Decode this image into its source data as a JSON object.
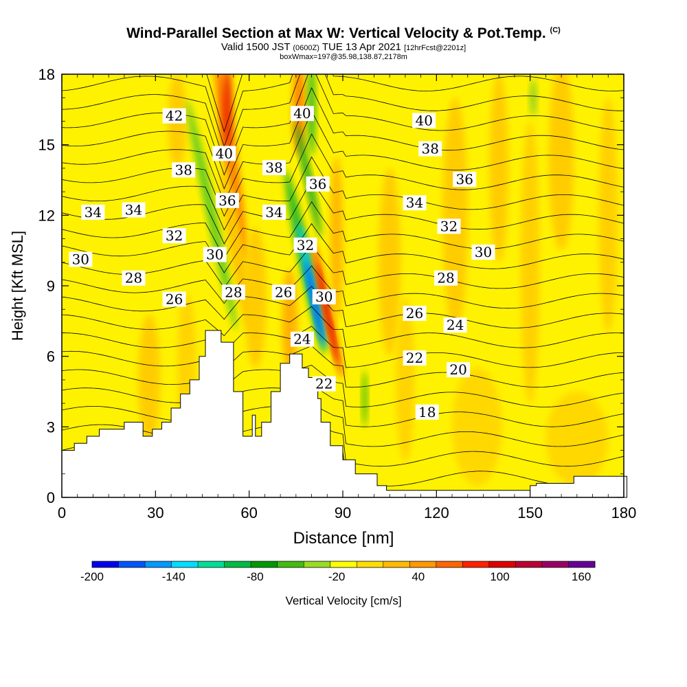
{
  "title": {
    "main": "Wind-Parallel Section at Max W: Vertical Velocity & Pot.Temp.",
    "copyright": "(C)",
    "valid_prefix": "Valid 1500 JST",
    "valid_utc": "(0600Z)",
    "valid_date": "TUE 13 Apr 2021",
    "forecast": "[12hrFcst@2201z]",
    "subtitle": "boxWmax=197@35.98,138.87,2178m"
  },
  "chart_data": {
    "type": "heatmap",
    "xlabel": "Distance [nm]",
    "ylabel": "Height [Kft MSL]",
    "xlim": [
      0,
      180
    ],
    "ylim": [
      0,
      18
    ],
    "x_ticks": [
      "0",
      "30",
      "60",
      "90",
      "120",
      "150",
      "180"
    ],
    "y_ticks": [
      "0",
      "3",
      "6",
      "9",
      "12",
      "15",
      "18"
    ],
    "colorbar": {
      "label": "Vertical Velocity [cm/s]",
      "min": -200,
      "max": 170,
      "step": 20,
      "tick_labels": [
        "-200",
        "-140",
        "-80",
        "-20",
        "40",
        "100",
        "160"
      ],
      "colors": [
        "#0000ee",
        "#0055ff",
        "#0099ff",
        "#00ddff",
        "#00dd99",
        "#00bb44",
        "#009900",
        "#44bb11",
        "#99dd22",
        "#ffff00",
        "#ffdd00",
        "#ffbb00",
        "#ff9900",
        "#ff6600",
        "#ff2200",
        "#dd0000",
        "#bb0033",
        "#990066",
        "#660099"
      ]
    },
    "terrain_kft": [
      [
        0,
        2.0
      ],
      [
        4,
        2.0
      ],
      [
        4,
        2.3
      ],
      [
        8,
        2.3
      ],
      [
        8,
        2.6
      ],
      [
        12,
        2.6
      ],
      [
        12,
        2.9
      ],
      [
        20,
        2.9
      ],
      [
        20,
        3.2
      ],
      [
        26,
        3.2
      ],
      [
        26,
        2.6
      ],
      [
        29,
        2.6
      ],
      [
        29,
        2.9
      ],
      [
        32,
        2.9
      ],
      [
        32,
        3.2
      ],
      [
        35,
        3.2
      ],
      [
        35,
        3.8
      ],
      [
        38,
        3.8
      ],
      [
        38,
        4.4
      ],
      [
        41,
        4.4
      ],
      [
        41,
        5.0
      ],
      [
        44,
        5.0
      ],
      [
        44,
        6.0
      ],
      [
        46,
        6.0
      ],
      [
        46,
        7.1
      ],
      [
        51,
        7.1
      ],
      [
        51,
        6.6
      ],
      [
        55,
        6.6
      ],
      [
        55,
        4.5
      ],
      [
        58,
        4.5
      ],
      [
        58,
        2.6
      ],
      [
        61,
        2.6
      ],
      [
        61,
        3.5
      ],
      [
        62,
        3.5
      ],
      [
        62,
        2.6
      ],
      [
        64,
        2.6
      ],
      [
        64,
        3.2
      ],
      [
        67,
        3.2
      ],
      [
        67,
        4.5
      ],
      [
        70,
        4.5
      ],
      [
        70,
        5.7
      ],
      [
        73,
        5.7
      ],
      [
        73,
        6.1
      ],
      [
        77,
        6.1
      ],
      [
        77,
        5.5
      ],
      [
        79,
        5.5
      ],
      [
        79,
        5.1
      ],
      [
        82,
        5.1
      ],
      [
        82,
        4.2
      ],
      [
        83,
        4.2
      ],
      [
        83,
        3.2
      ],
      [
        86,
        3.2
      ],
      [
        86,
        2.2
      ],
      [
        90,
        2.2
      ],
      [
        90,
        1.6
      ],
      [
        94,
        1.6
      ],
      [
        94,
        1.0
      ],
      [
        101,
        1.0
      ],
      [
        101,
        0.5
      ],
      [
        104,
        0.5
      ],
      [
        104,
        0.3
      ],
      [
        150,
        0.3
      ],
      [
        150,
        0.5
      ],
      [
        152,
        0.5
      ],
      [
        152,
        0.6
      ],
      [
        164,
        0.6
      ],
      [
        164,
        0.9
      ],
      [
        181,
        0.9
      ]
    ],
    "isentrope_labels": [
      {
        "value": "42",
        "x": 36,
        "y": 16.2
      },
      {
        "value": "40",
        "x": 52,
        "y": 14.6
      },
      {
        "value": "40",
        "x": 77,
        "y": 16.3
      },
      {
        "value": "40",
        "x": 116,
        "y": 16.0
      },
      {
        "value": "38",
        "x": 39,
        "y": 13.9
      },
      {
        "value": "38",
        "x": 68,
        "y": 14.0
      },
      {
        "value": "38",
        "x": 118,
        "y": 14.8
      },
      {
        "value": "36",
        "x": 53,
        "y": 12.6
      },
      {
        "value": "36",
        "x": 82,
        "y": 13.3
      },
      {
        "value": "36",
        "x": 129,
        "y": 13.5
      },
      {
        "value": "34",
        "x": 10,
        "y": 12.1
      },
      {
        "value": "34",
        "x": 23,
        "y": 12.2
      },
      {
        "value": "34",
        "x": 68,
        "y": 12.1
      },
      {
        "value": "34",
        "x": 113,
        "y": 12.5
      },
      {
        "value": "32",
        "x": 36,
        "y": 11.1
      },
      {
        "value": "32",
        "x": 78,
        "y": 10.7
      },
      {
        "value": "32",
        "x": 124,
        "y": 11.5
      },
      {
        "value": "30",
        "x": 6,
        "y": 10.1
      },
      {
        "value": "30",
        "x": 49,
        "y": 10.3
      },
      {
        "value": "30",
        "x": 84,
        "y": 8.5
      },
      {
        "value": "30",
        "x": 135,
        "y": 10.4
      },
      {
        "value": "28",
        "x": 23,
        "y": 9.3
      },
      {
        "value": "28",
        "x": 55,
        "y": 8.7
      },
      {
        "value": "28",
        "x": 123,
        "y": 9.3
      },
      {
        "value": "26",
        "x": 36,
        "y": 8.4
      },
      {
        "value": "26",
        "x": 71,
        "y": 8.7
      },
      {
        "value": "26",
        "x": 113,
        "y": 7.8
      },
      {
        "value": "24",
        "x": 77,
        "y": 6.7
      },
      {
        "value": "24",
        "x": 126,
        "y": 7.3
      },
      {
        "value": "22",
        "x": 84,
        "y": 4.8
      },
      {
        "value": "22",
        "x": 113,
        "y": 5.9
      },
      {
        "value": "20",
        "x": 127,
        "y": 5.4
      },
      {
        "value": "18",
        "x": 117,
        "y": 3.6
      }
    ]
  }
}
